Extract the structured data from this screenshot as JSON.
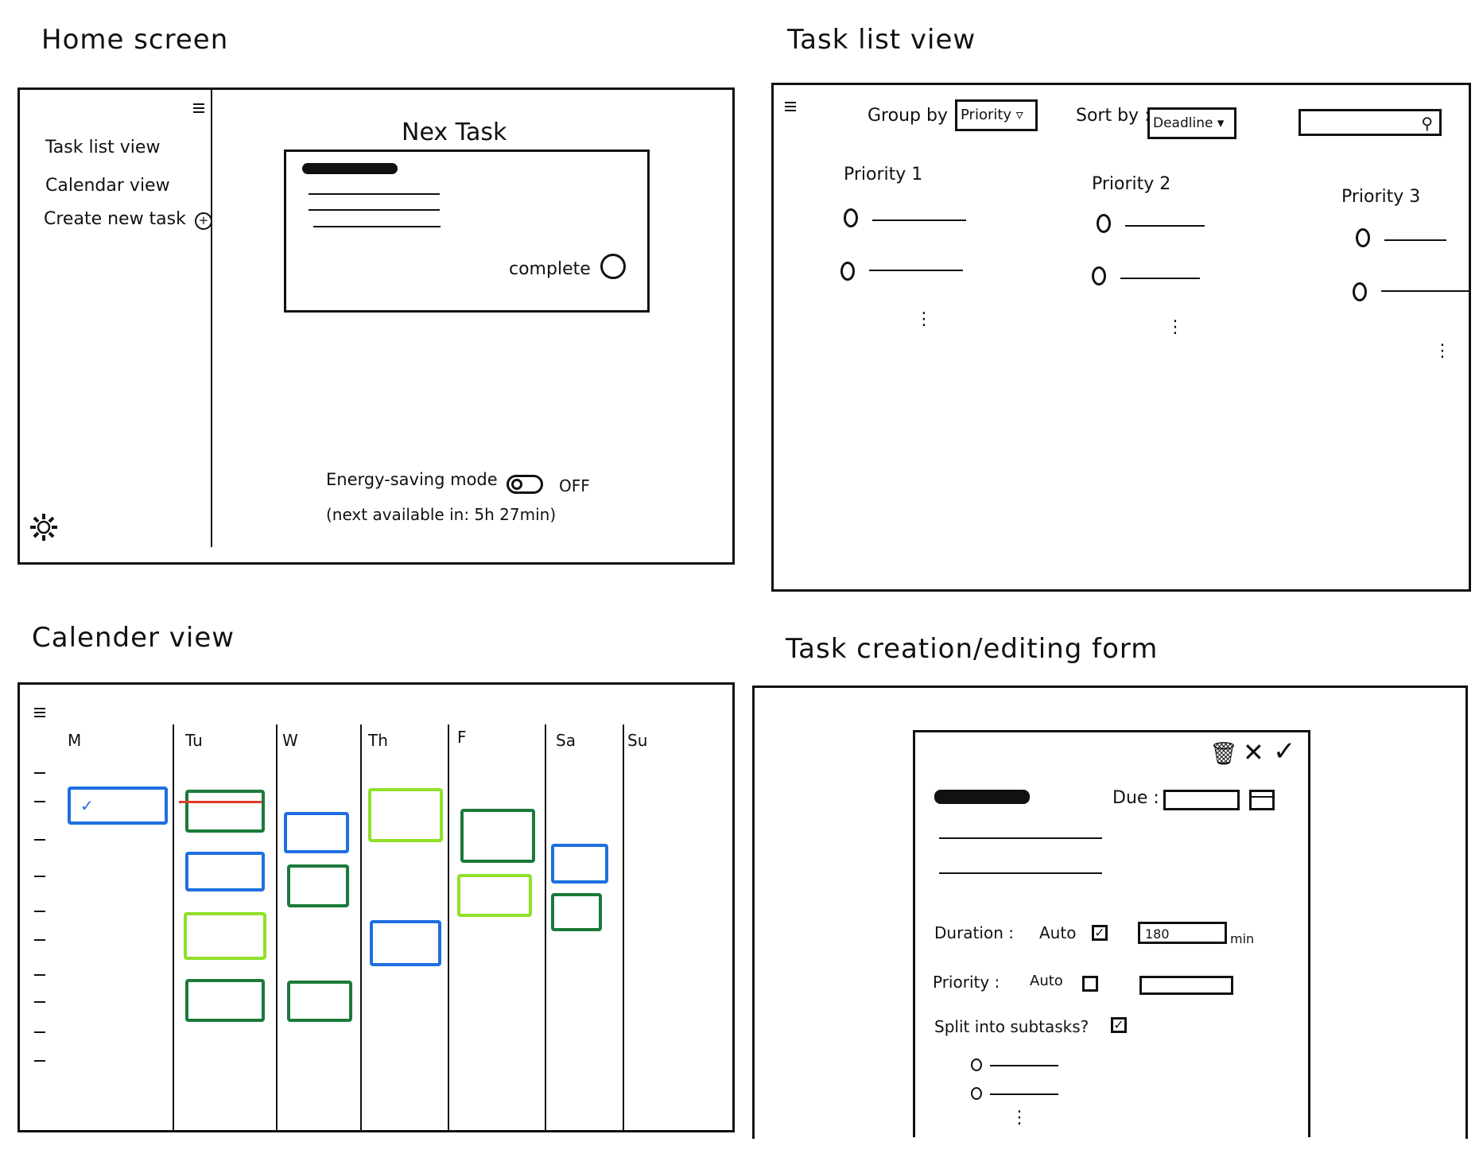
{
  "home": {
    "section_title": "Home screen",
    "sidebar": [
      "Task list view",
      "Calendar view",
      "Create new task"
    ],
    "next_task_title": "Nex Task",
    "complete_label": "complete",
    "energy_label": "Energy-saving mode",
    "energy_state": "OFF",
    "next_available": "(next available in: 5h 27min)"
  },
  "tasklist": {
    "section_title": "Task list view",
    "group_label": "Group by :",
    "group_value": "Priority",
    "sort_label": "Sort by :",
    "sort_value": "Deadline",
    "columns": [
      "Priority 1",
      "Priority 2",
      "Priority 3"
    ]
  },
  "calendar": {
    "section_title": "Calender view",
    "days": [
      "M",
      "Tu",
      "W",
      "Th",
      "F",
      "Sa",
      "Su"
    ],
    "colors": {
      "blue": "#1e6fe0",
      "dark_green": "#1b7a3a",
      "lime": "#8fe02a",
      "red": "#e03a2a"
    }
  },
  "form": {
    "section_title": "Task creation/editing form",
    "due_label": "Due :",
    "duration_label": "Duration :",
    "auto_label": "Auto",
    "duration_value": "180",
    "duration_unit": "min",
    "priority_label": "Priority :",
    "split_label": "Split into subtasks?",
    "icons": [
      "trash-icon",
      "close-icon",
      "check-icon",
      "calendar-icon"
    ]
  }
}
